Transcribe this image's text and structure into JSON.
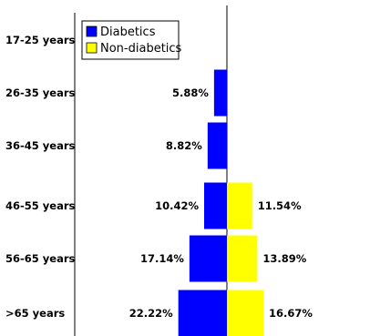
{
  "chart_data": {
    "type": "bar",
    "orientation": "horizontal-diverging",
    "categories": [
      "17-25 years",
      "26-35 years",
      "36-45 years",
      "46-55 years",
      "56-65 years",
      ">65 years"
    ],
    "series": [
      {
        "name": "Diabetics",
        "values": [
          null,
          5.88,
          8.82,
          10.42,
          17.14,
          22.22
        ],
        "labels": [
          "",
          "5.88%",
          "8.82%",
          "10.42%",
          "17.14%",
          "22.22%"
        ],
        "color": "#0000ff",
        "direction": "left"
      },
      {
        "name": "Non-diabetics",
        "values": [
          null,
          null,
          null,
          11.54,
          13.89,
          16.67
        ],
        "labels": [
          "",
          "",
          "",
          "11.54%",
          "13.89%",
          "16.67%"
        ],
        "color": "#ffff00",
        "direction": "right"
      }
    ],
    "legend": {
      "position": "top-left"
    },
    "grid": false
  }
}
